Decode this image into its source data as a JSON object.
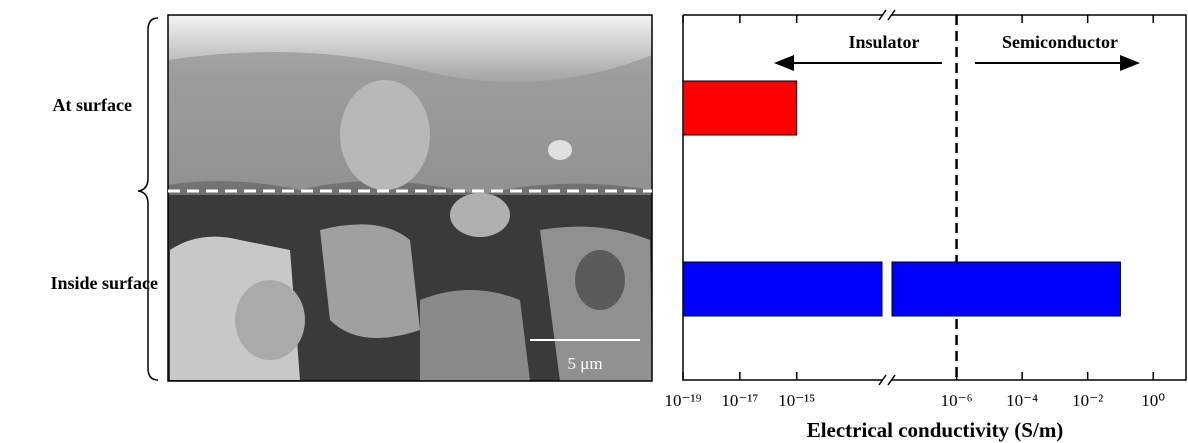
{
  "scale_bar": "5 μm",
  "chart_data": {
    "type": "barh",
    "categories": [
      "At surface",
      "Inside surface"
    ],
    "values": [
      1e-15,
      0.1
    ],
    "colors": [
      "#ff0000",
      "#0000ff"
    ],
    "x_label": "Electrical conductivity (S/m)",
    "xscale": "log",
    "xlim": [
      1e-19,
      10
    ],
    "xbreak": [
      1e-12,
      1e-08
    ],
    "xticks": [
      {
        "value": 1e-19,
        "label": "10⁻¹⁹"
      },
      {
        "value": 1e-17,
        "label": "10⁻¹⁷"
      },
      {
        "value": 1e-15,
        "label": "10⁻¹⁵"
      },
      {
        "value": 1e-06,
        "label": "10⁻⁶"
      },
      {
        "value": 0.0001,
        "label": "10⁻⁴"
      },
      {
        "value": 0.01,
        "label": "10⁻²"
      },
      {
        "value": 1,
        "label": "10⁰"
      }
    ],
    "threshold": 1e-06,
    "annotations": [
      "Insulator",
      "Semiconductor"
    ]
  }
}
